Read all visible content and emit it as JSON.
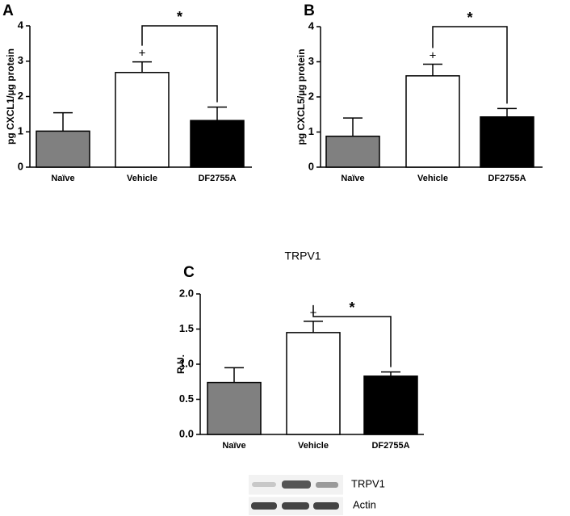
{
  "chart_data": [
    {
      "type": "bar",
      "panel": "A",
      "ylabel": "pg CXCL1/µg protein",
      "categories": [
        "Naïve",
        "Vehicle",
        "DF2755A"
      ],
      "values": [
        1.02,
        2.68,
        1.32
      ],
      "errors": [
        0.52,
        0.3,
        0.38
      ],
      "colors": [
        "#808080",
        "#ffffff",
        "#000000"
      ],
      "ylim": [
        0,
        4
      ],
      "yticks": [
        0,
        1,
        2,
        3,
        4
      ],
      "annotations": {
        "plus": "+",
        "star": "*"
      }
    },
    {
      "type": "bar",
      "panel": "B",
      "ylabel": "pg CXCL5/µg protein",
      "categories": [
        "Naïve",
        "Vehicle",
        "DF2755A"
      ],
      "values": [
        0.88,
        2.6,
        1.43
      ],
      "errors": [
        0.52,
        0.33,
        0.24
      ],
      "colors": [
        "#808080",
        "#ffffff",
        "#000000"
      ],
      "ylim": [
        0,
        4
      ],
      "yticks": [
        0,
        1,
        2,
        3,
        4
      ],
      "annotations": {
        "plus": "+",
        "star": "*"
      }
    },
    {
      "type": "bar",
      "panel": "C",
      "title": "TRPV1",
      "ylabel": "R.U.",
      "categories": [
        "Naïve",
        "Vehicle",
        "DF2755A"
      ],
      "values": [
        0.74,
        1.45,
        0.83
      ],
      "errors": [
        0.21,
        0.16,
        0.06
      ],
      "colors": [
        "#808080",
        "#ffffff",
        "#000000"
      ],
      "ylim": [
        0,
        2
      ],
      "yticks": [
        {
          "value": 0,
          "label": "0.0"
        },
        0.5,
        {
          "value": 1,
          "label": "1.0"
        },
        1.5,
        {
          "value": 2,
          "label": "2.0"
        }
      ],
      "annotations": {
        "plus": "+",
        "star": "*"
      }
    }
  ],
  "blot": {
    "labels": [
      "TRPV1",
      "Actin"
    ]
  }
}
